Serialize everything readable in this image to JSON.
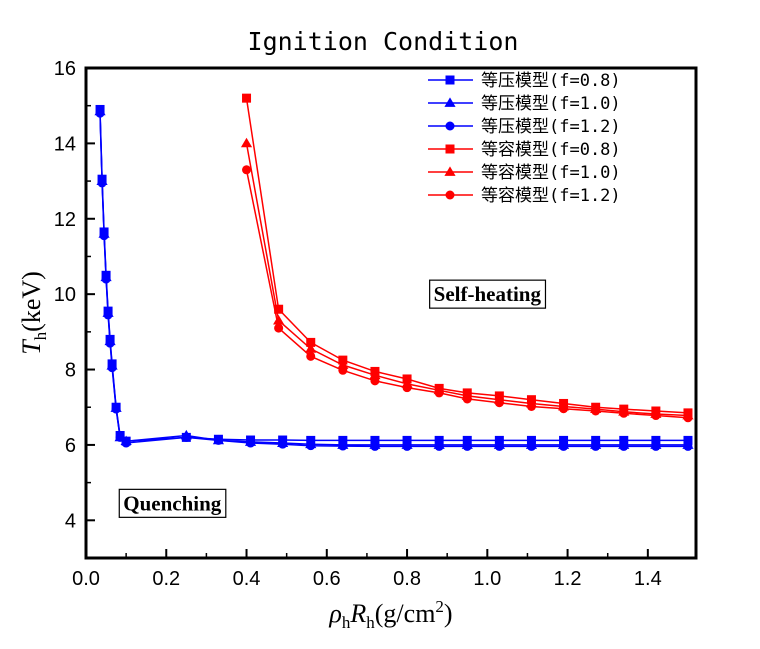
{
  "chart_data": {
    "type": "line",
    "title": "Ignition Condition",
    "xlabel": {
      "base_main": "ρ",
      "base_sub": "h",
      "italic": "R",
      "italic_sub": "h",
      "unit": "(g/cm",
      "sup": "2",
      "close": ")"
    },
    "ylabel": {
      "italic": "T",
      "sub": "h",
      "unit": "(keV)"
    },
    "xlim": [
      0.0,
      1.52
    ],
    "ylim": [
      3.0,
      16.0
    ],
    "x_ticks": [
      "0.0",
      "0.2",
      "0.4",
      "0.6",
      "0.8",
      "1.0",
      "1.2",
      "1.4"
    ],
    "x_tick_values": [
      0.0,
      0.2,
      0.4,
      0.6,
      0.8,
      1.0,
      1.2,
      1.4
    ],
    "y_ticks": [
      "4",
      "6",
      "8",
      "10",
      "12",
      "14",
      "16"
    ],
    "y_tick_values": [
      4,
      6,
      8,
      10,
      12,
      14,
      16
    ],
    "colors": {
      "blue": "#0000ff",
      "red": "#ff0000"
    },
    "annotations": [
      {
        "text": "Self-heating",
        "x": 1.0,
        "y": 10.0
      },
      {
        "text": "Quenching",
        "x": 0.215,
        "y": 4.45
      }
    ],
    "legend_position": "top-right",
    "series": [
      {
        "name": "等压模型(f=0.8)",
        "color": "#0000ff",
        "marker": "square",
        "x": [
          0.035,
          0.04,
          0.045,
          0.05,
          0.055,
          0.06,
          0.065,
          0.075,
          0.085,
          0.1,
          0.25,
          0.33,
          0.41,
          0.49,
          0.56,
          0.64,
          0.72,
          0.8,
          0.88,
          0.95,
          1.03,
          1.11,
          1.19,
          1.27,
          1.34,
          1.42,
          1.5
        ],
        "y": [
          14.9,
          13.05,
          11.65,
          10.5,
          9.55,
          8.8,
          8.15,
          7.0,
          6.25,
          6.1,
          6.2,
          6.15,
          6.13,
          6.13,
          6.12,
          6.12,
          6.12,
          6.12,
          6.12,
          6.12,
          6.12,
          6.12,
          6.12,
          6.12,
          6.12,
          6.12,
          6.12
        ]
      },
      {
        "name": "等压模型(f=1.0)",
        "color": "#0000ff",
        "marker": "triangle",
        "x": [
          0.035,
          0.04,
          0.045,
          0.05,
          0.055,
          0.06,
          0.065,
          0.075,
          0.085,
          0.1,
          0.25,
          0.33,
          0.41,
          0.49,
          0.56,
          0.64,
          0.72,
          0.8,
          0.88,
          0.95,
          1.03,
          1.11,
          1.19,
          1.27,
          1.34,
          1.42,
          1.5
        ],
        "y": [
          14.85,
          13.0,
          11.6,
          10.45,
          9.5,
          8.75,
          8.1,
          6.98,
          6.2,
          6.1,
          6.25,
          6.12,
          6.08,
          6.05,
          6.02,
          6.0,
          6.0,
          6.0,
          6.0,
          6.0,
          6.0,
          6.0,
          6.0,
          6.0,
          6.0,
          6.0,
          6.0
        ]
      },
      {
        "name": "等压模型(f=1.2)",
        "color": "#0000ff",
        "marker": "circle",
        "x": [
          0.035,
          0.04,
          0.045,
          0.05,
          0.055,
          0.06,
          0.065,
          0.075,
          0.085,
          0.1,
          0.25,
          0.33,
          0.41,
          0.49,
          0.56,
          0.64,
          0.72,
          0.8,
          0.88,
          0.95,
          1.03,
          1.11,
          1.19,
          1.27,
          1.34,
          1.42,
          1.5
        ],
        "y": [
          14.8,
          12.95,
          11.55,
          10.4,
          9.45,
          8.7,
          8.05,
          6.95,
          6.2,
          6.05,
          6.2,
          6.12,
          6.05,
          6.02,
          5.98,
          5.97,
          5.96,
          5.96,
          5.96,
          5.96,
          5.96,
          5.96,
          5.96,
          5.96,
          5.96,
          5.96,
          5.96
        ]
      },
      {
        "name": "等容模型(f=0.8)",
        "color": "#ff0000",
        "marker": "square",
        "x": [
          0.4,
          0.48,
          0.56,
          0.64,
          0.72,
          0.8,
          0.88,
          0.95,
          1.03,
          1.11,
          1.19,
          1.27,
          1.34,
          1.42,
          1.5
        ],
        "y": [
          15.2,
          9.6,
          8.72,
          8.25,
          7.95,
          7.75,
          7.5,
          7.38,
          7.3,
          7.2,
          7.1,
          7.0,
          6.95,
          6.9,
          6.85
        ]
      },
      {
        "name": "等容模型(f=1.0)",
        "color": "#ff0000",
        "marker": "triangle",
        "x": [
          0.4,
          0.48,
          0.56,
          0.64,
          0.72,
          0.8,
          0.88,
          0.95,
          1.03,
          1.11,
          1.19,
          1.27,
          1.34,
          1.42,
          1.5
        ],
        "y": [
          14.0,
          9.3,
          8.55,
          8.12,
          7.85,
          7.62,
          7.45,
          7.3,
          7.2,
          7.1,
          7.02,
          6.95,
          6.88,
          6.82,
          6.78
        ]
      },
      {
        "name": "等容模型(f=1.2)",
        "color": "#ff0000",
        "marker": "circle",
        "x": [
          0.4,
          0.48,
          0.56,
          0.64,
          0.72,
          0.8,
          0.88,
          0.95,
          1.03,
          1.11,
          1.19,
          1.27,
          1.34,
          1.42,
          1.5
        ],
        "y": [
          13.3,
          9.1,
          8.35,
          7.98,
          7.7,
          7.52,
          7.38,
          7.22,
          7.12,
          7.02,
          6.96,
          6.9,
          6.84,
          6.78,
          6.72
        ]
      }
    ]
  }
}
